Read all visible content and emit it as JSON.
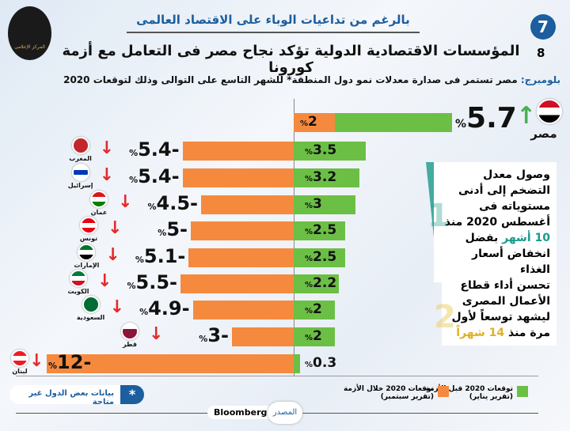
{
  "header": {
    "subtitle": "بالرغم من تداعيات الوباء على الاقتصاد العالمى",
    "title": "المؤسسات الاقتصادية الدولية تؤكد نجاح مصر فى التعامل مع أزمة كورونا",
    "page_current": "7",
    "page_total": "8",
    "logo_text": "المركز الإعلامى",
    "lead_source": "بلومبرج:",
    "lead_text": "مصر تستمر فى صدارة معدلات نمو دول المنطقة* للشهر التاسع على التوالى وذلك لتوقعات 2020"
  },
  "chart_data": {
    "type": "bar",
    "orientation": "horizontal",
    "unit": "%",
    "categories": [
      "مصر",
      "المغرب",
      "إسرائيل",
      "عمان",
      "تونس",
      "الإمارات",
      "الكويت",
      "السعودية",
      "قطر",
      "لبنان"
    ],
    "series": [
      {
        "name": "توقعات 2020 قبل الأزمة (تقرير يناير)",
        "color": "#6cbf45",
        "values": [
          5.7,
          3.5,
          3.2,
          3,
          2.5,
          2.5,
          2.2,
          2,
          2,
          0.3
        ]
      },
      {
        "name": "توقعات 2020 خلال الأزمة (تقرير سبتمبر)",
        "color": "#f58a3f",
        "values": [
          2,
          -5.4,
          -5.4,
          -4.5,
          -5,
          -5.1,
          -5.5,
          -4.9,
          -3,
          -12
        ]
      }
    ],
    "labels_green": [
      "5.7",
      "3.5",
      "3.2",
      "3",
      "2.5",
      "2.5",
      "2.2",
      "2",
      "2",
      "0.3"
    ],
    "labels_orange": [
      "2",
      "-5.4",
      "-5.4",
      "-4.5",
      "-5",
      "-5.1",
      "-5.5",
      "-4.9",
      "-3",
      "-12"
    ],
    "legend": [
      {
        "label": "توقعات 2020 قبل الأزمة",
        "sub": "(تقرير يناير)"
      },
      {
        "label": "توقعات 2020 خلال الأزمة",
        "sub": "(تقرير سبتمبر)"
      }
    ]
  },
  "notes": [
    {
      "num": "1",
      "text": "وصول معدل التضخم إلى أدنى مستوياته فى أغسطس 2020 منذ",
      "highlight": "10 أشهر",
      "after": "بفضل انخفاض أسعار الغذاء",
      "accent": "#1a9a8a"
    },
    {
      "num": "2",
      "text": "تحسن أداء قطاع الأعمال المصرى ليشهد توسعاً لأول مرة منذ",
      "highlight": "14 شهراً",
      "after": "",
      "accent": "#e8c23a"
    }
  ],
  "footer": {
    "footnote": "بيانات بعض الدول غير متاحة",
    "star": "*",
    "source_label": "المصدر",
    "source": "Bloomberg"
  }
}
